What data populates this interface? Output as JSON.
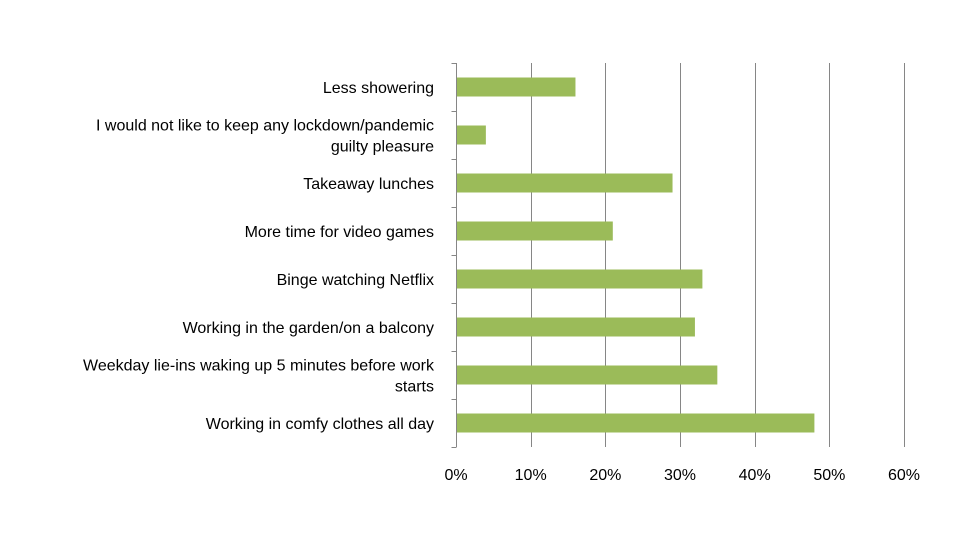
{
  "chart_data": {
    "type": "bar",
    "orientation": "horizontal",
    "title": "",
    "xlabel": "",
    "ylabel": "",
    "categories": [
      "Less showering",
      "I would not like to keep any lockdown/pandemic guilty pleasure",
      "Takeaway lunches",
      "More time for video games",
      "Binge watching Netflix",
      "Working in the garden/on a balcony",
      "Weekday lie-ins waking up 5 minutes before work starts",
      "Working in comfy clothes all day"
    ],
    "category_lines": [
      [
        "Less showering"
      ],
      [
        "I would not like to keep any lockdown/pandemic",
        "guilty pleasure"
      ],
      [
        "Takeaway lunches"
      ],
      [
        "More time for video games"
      ],
      [
        "Binge watching Netflix"
      ],
      [
        "Working in the garden/on a balcony"
      ],
      [
        "Weekday lie-ins waking up 5 minutes before work",
        "starts"
      ],
      [
        "Working in comfy clothes all day"
      ]
    ],
    "values": [
      16,
      4,
      29,
      21,
      33,
      32,
      35,
      48
    ],
    "unit": "%",
    "xlim": [
      0,
      60
    ],
    "x_ticks": [
      0,
      10,
      20,
      30,
      40,
      50,
      60
    ],
    "x_tick_labels": [
      "0%",
      "10%",
      "20%",
      "30%",
      "40%",
      "50%",
      "60%"
    ],
    "bar_color": "#9BBB59",
    "grid": true,
    "grid_color": "#868686",
    "legend": false
  }
}
